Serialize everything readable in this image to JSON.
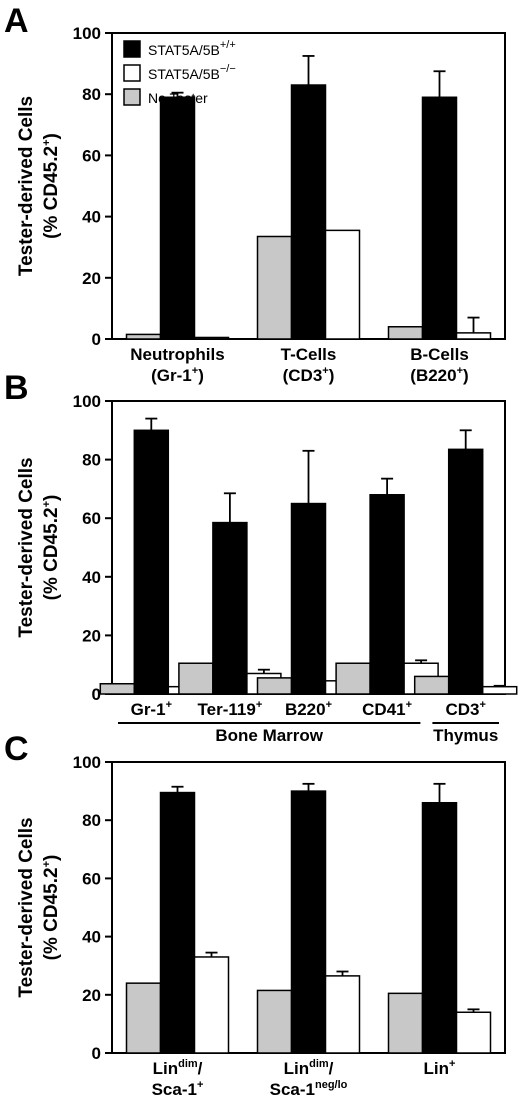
{
  "colors": {
    "STAT5A/5B+/+": "#000000",
    "STAT5A/5B-/-": "#ffffff",
    "No Tester": "#c8c8c8",
    "axis": "#000000"
  },
  "legend": [
    {
      "base": "STAT5A/5B",
      "sup": "+/+",
      "fill": "#000000"
    },
    {
      "base": "STAT5A/5B",
      "sup": "−/−",
      "fill": "#ffffff"
    },
    {
      "base": "No Tester",
      "sup": "",
      "fill": "#c8c8c8"
    }
  ],
  "chart_data": [
    {
      "panel": "A",
      "type": "bar",
      "ylabel_line1": "Tester-derived Cells",
      "ylabel_line2": "(% CD45.2",
      "ylabel_sup": "+",
      "ylabel_close": ")",
      "ylim": [
        0,
        100
      ],
      "yticks": [
        0,
        20,
        40,
        60,
        80,
        100
      ],
      "categories": [
        {
          "line1": "Neutrophils",
          "line2": "(Gr-1",
          "line2_sup": "+",
          "line2_close": ")"
        },
        {
          "line1": "T-Cells",
          "line2": "(CD3",
          "line2_sup": "+",
          "line2_close": ")"
        },
        {
          "line1": "B-Cells",
          "line2": "(B220",
          "line2_sup": "+",
          "line2_close": ")"
        }
      ],
      "series": [
        {
          "name": "No Tester",
          "values": [
            1.5,
            33.5,
            4
          ],
          "errors": [
            0,
            0,
            0
          ]
        },
        {
          "name": "STAT5A/5B+/+",
          "values": [
            79,
            83,
            79
          ],
          "errors": [
            1.5,
            9.5,
            8.5
          ]
        },
        {
          "name": "STAT5A/5B-/-",
          "values": [
            0.5,
            35.5,
            2
          ],
          "errors": [
            0,
            0,
            5
          ]
        }
      ]
    },
    {
      "panel": "B",
      "type": "bar",
      "ylabel_line1": "Tester-derived Cells",
      "ylabel_line2": "(% CD45.2",
      "ylabel_sup": "+",
      "ylabel_close": ")",
      "ylim": [
        0,
        100
      ],
      "yticks": [
        0,
        20,
        40,
        60,
        80,
        100
      ],
      "categories": [
        {
          "line1": "Gr-1",
          "line1_sup": "+"
        },
        {
          "line1": "Ter-119",
          "line1_sup": "+"
        },
        {
          "line1": "B220",
          "line1_sup": "+"
        },
        {
          "line1": "CD41",
          "line1_sup": "+"
        },
        {
          "line1": "CD3",
          "line1_sup": "+"
        }
      ],
      "groups": [
        {
          "label": "Bone Marrow",
          "from": 0,
          "to": 3
        },
        {
          "label": "Thymus",
          "from": 4,
          "to": 4
        }
      ],
      "series": [
        {
          "name": "No Tester",
          "values": [
            3.5,
            10.5,
            5.5,
            10.5,
            6
          ],
          "errors": [
            0,
            0,
            0,
            0,
            0
          ]
        },
        {
          "name": "STAT5A/5B+/+",
          "values": [
            90,
            58.5,
            65,
            68,
            83.5
          ],
          "errors": [
            4,
            10,
            18,
            5.5,
            6.5
          ]
        },
        {
          "name": "STAT5A/5B-/-",
          "values": [
            2.5,
            7,
            4.5,
            10.5,
            2.5
          ],
          "errors": [
            0.5,
            1.3,
            1,
            1,
            0.3
          ]
        }
      ]
    },
    {
      "panel": "C",
      "type": "bar",
      "ylabel_line1": "Tester-derived Cells",
      "ylabel_line2": "(% CD45.2",
      "ylabel_sup": "+",
      "ylabel_close": ")",
      "ylim": [
        0,
        100
      ],
      "yticks": [
        0,
        20,
        40,
        60,
        80,
        100
      ],
      "categories": [
        {
          "line1": "Lin",
          "line1_sup": "dim",
          "line1_close": "/",
          "line2": "Sca-1",
          "line2_sup": "+",
          "line2_close": ""
        },
        {
          "line1": "Lin",
          "line1_sup": "dim",
          "line1_close": "/",
          "line2": "Sca-1",
          "line2_sup": "neg/lo",
          "line2_close": ""
        },
        {
          "line1": "Lin",
          "line1_sup": "+",
          "line1_close": ""
        }
      ],
      "series": [
        {
          "name": "No Tester",
          "values": [
            24,
            21.5,
            20.5
          ],
          "errors": [
            0,
            0,
            0
          ]
        },
        {
          "name": "STAT5A/5B+/+",
          "values": [
            89.5,
            90,
            86
          ],
          "errors": [
            2,
            2.5,
            6.5
          ]
        },
        {
          "name": "STAT5A/5B-/-",
          "values": [
            33,
            26.5,
            14
          ],
          "errors": [
            1.5,
            1.5,
            1
          ]
        }
      ]
    }
  ]
}
